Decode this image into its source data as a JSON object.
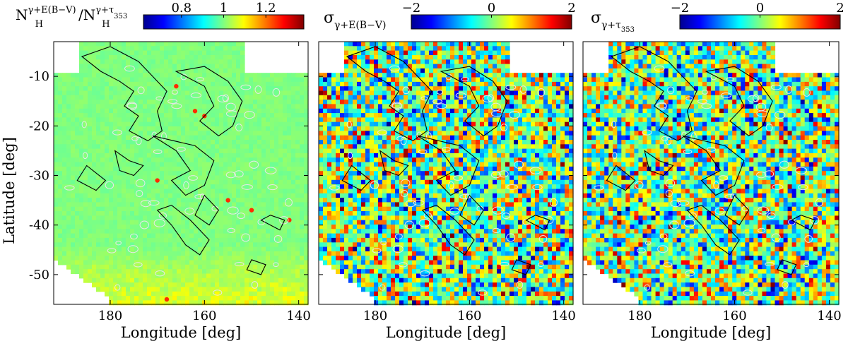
{
  "chart_data": [
    {
      "type": "heatmap",
      "panel": "left",
      "colorbar_title": {
        "base": "N",
        "sub": "H",
        "sup": "γ+E(B−V)",
        "sep": "/",
        "base2": "N",
        "sub2": "H",
        "sup2": "γ+τ",
        "sup2_sub": "353"
      },
      "colorbar_ticks": [
        "0.8",
        "1",
        "1.2"
      ],
      "colorbar_range": [
        0.62,
        1.38
      ],
      "xlabel": "Longitude [deg]",
      "ylabel": "Latitude [deg]",
      "xlim": [
        192,
        138
      ],
      "ylim": [
        -56,
        -3
      ],
      "xticks": [
        180,
        160,
        140
      ],
      "yticks": [
        -10,
        -20,
        -30,
        -40,
        -50
      ],
      "base_value": 1.0
    },
    {
      "type": "heatmap",
      "panel": "middle",
      "colorbar_title": {
        "base": "σ",
        "sub": "γ+E(B−V)"
      },
      "colorbar_ticks": [
        "−2",
        "0",
        "2"
      ],
      "colorbar_range": [
        -2,
        2
      ],
      "xlabel": "Longitude [deg]",
      "xlim": [
        192,
        138
      ],
      "ylim": [
        -56,
        -3
      ],
      "xticks": [
        180,
        160,
        140
      ],
      "yticks": [
        -10,
        -20,
        -30,
        -40,
        -50
      ]
    },
    {
      "type": "heatmap",
      "panel": "right",
      "colorbar_title": {
        "base": "σ",
        "sub": "γ+τ",
        "subsub": "353"
      },
      "colorbar_ticks": [
        "−2",
        "0",
        "2"
      ],
      "colorbar_range": [
        -2,
        2
      ],
      "xlabel": "Longitude [deg]",
      "xlim": [
        192,
        138
      ],
      "ylim": [
        -56,
        -3
      ],
      "xticks": [
        180,
        160,
        140
      ],
      "yticks": [
        -10,
        -20,
        -30,
        -40,
        -50
      ]
    }
  ],
  "colors": {
    "jet": [
      "#00008f",
      "#0000ff",
      "#0080ff",
      "#00ffff",
      "#80ff80",
      "#ffff00",
      "#ff8000",
      "#ff0000",
      "#800000"
    ],
    "contour": "#000000",
    "source_ellipse": "#e8e8e8",
    "background": "#ffffff"
  }
}
